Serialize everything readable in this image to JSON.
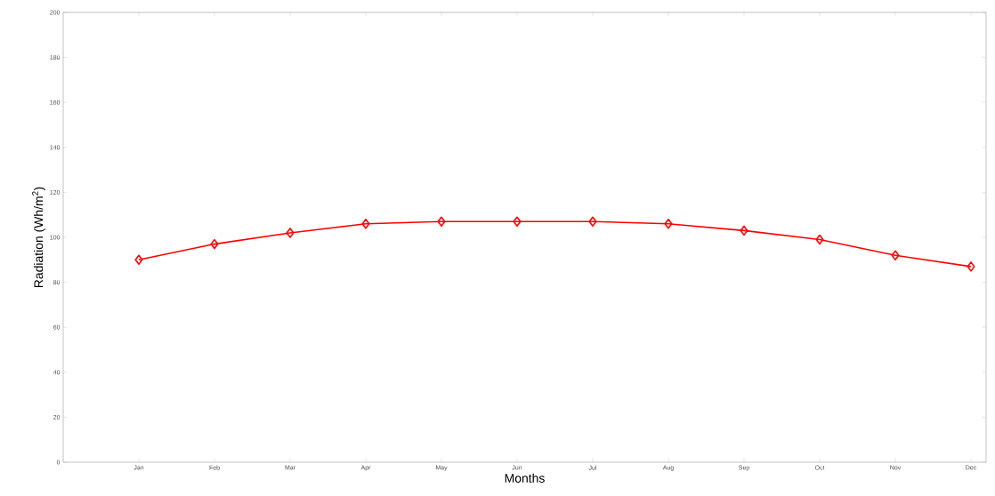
{
  "chart_data": {
    "type": "line",
    "xlabel": "Months",
    "ylabel": "Radiation (Wh/m$^{2}$)",
    "categories": [
      "Jan",
      "Feb",
      "Mar",
      "Apr",
      "May",
      "Jun",
      "Jul",
      "Aug",
      "Sep",
      "Oct",
      "Nov",
      "Dec"
    ],
    "series": [
      {
        "color": "#ff0000",
        "values": [
          90,
          97,
          102,
          106,
          107,
          107,
          107,
          106,
          103,
          99,
          92,
          87
        ]
      }
    ],
    "ylim": [
      0,
      200
    ],
    "yticks": [
      0,
      20,
      40,
      60,
      80,
      100,
      120,
      140,
      160,
      180,
      200
    ],
    "marker": "diamond",
    "line_style": "solid",
    "grid": false
  }
}
